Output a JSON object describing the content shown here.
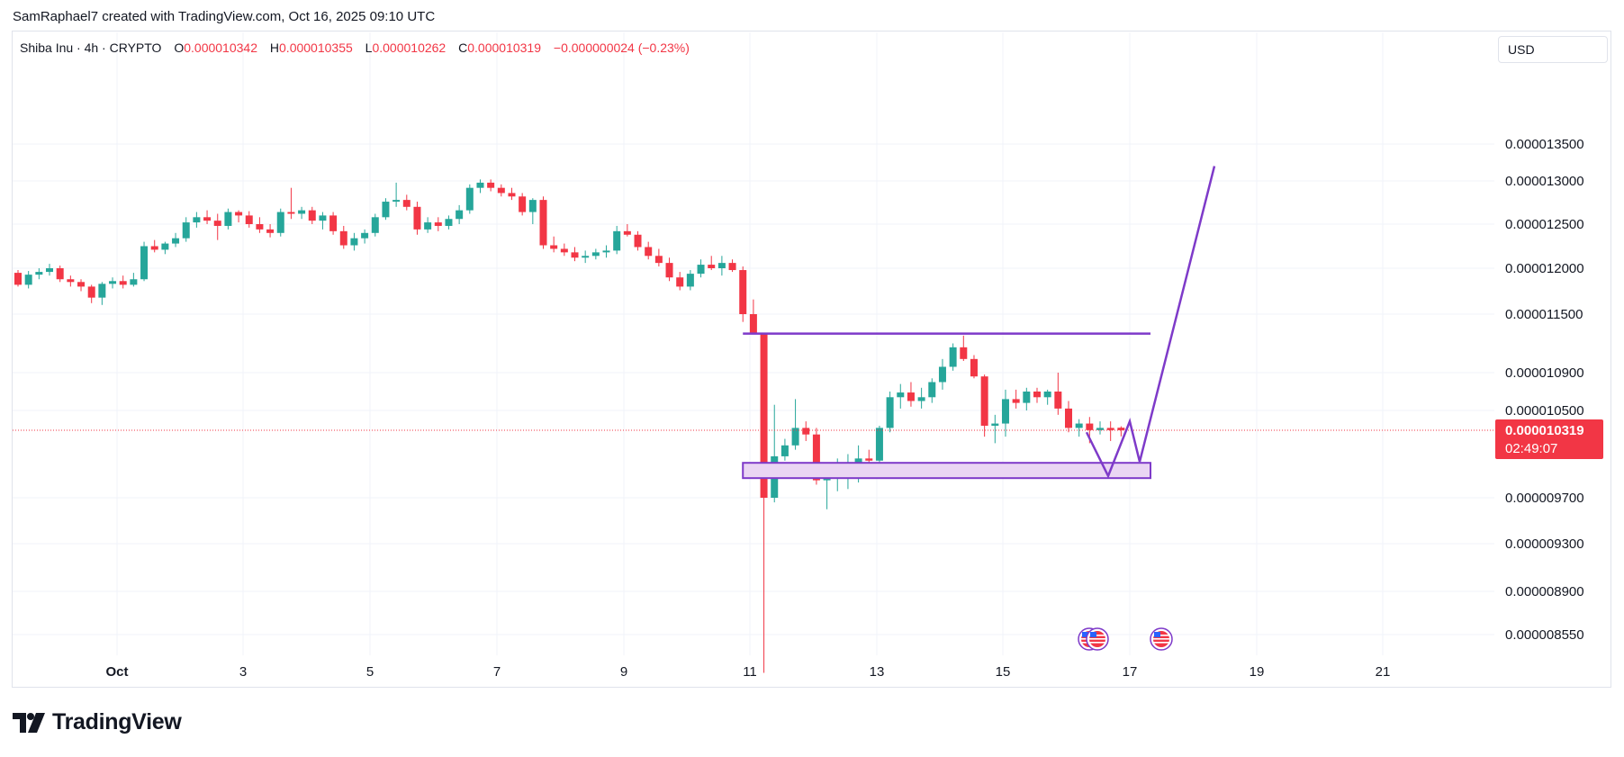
{
  "header": {
    "attribution": "SamRaphael7 created with TradingView.com, Oct 16, 2025 09:10 UTC"
  },
  "legend": {
    "symbol": "Shiba Inu · 4h · CRYPTO",
    "open_label": "O",
    "open": "0.000010342",
    "high_label": "H",
    "high": "0.000010355",
    "low_label": "L",
    "low": "0.000010262",
    "close_label": "C",
    "close": "0.000010319",
    "change": "−0.000000024 (−0.23%)"
  },
  "currency": "USD",
  "price_badge": {
    "price": "0.000010319",
    "countdown": "02:49:07"
  },
  "footer": {
    "brand": "TradingView"
  },
  "colors": {
    "up": "#26a69a",
    "down": "#f23645",
    "drawing": "#7e3ac9",
    "zone_fill": "#ead5f3",
    "grid": "#f0f3fa"
  },
  "icons": [
    "us-flag-event-icon",
    "us-flag-event-icon",
    "us-flag-event-icon"
  ],
  "chart_data": {
    "type": "candlestick",
    "timeframe": "4h",
    "x_tick_labels": [
      "Oct",
      "3",
      "5",
      "7",
      "9",
      "11",
      "13",
      "15",
      "17",
      "19",
      "21"
    ],
    "y_tick_labels": [
      "0.000013500",
      "0.000013000",
      "0.000012500",
      "0.000012000",
      "0.000011500",
      "0.000010900",
      "0.000010500",
      "0.000009700",
      "0.000009300",
      "0.000008900",
      "0.000008550"
    ],
    "y_ticks": [
      1.35e-05,
      1.3e-05,
      1.25e-05,
      1.2e-05,
      1.15e-05,
      1.09e-05,
      1.05e-05,
      9.7e-06,
      9.3e-06,
      8.9e-06,
      8.55e-06
    ],
    "last_price": 1.0319e-05,
    "candles": [
      [
        11.95,
        11.98,
        11.8,
        11.82
      ],
      [
        11.82,
        11.97,
        11.78,
        11.93
      ],
      [
        11.93,
        12.0,
        11.88,
        11.96
      ],
      [
        11.96,
        12.05,
        11.92,
        12.0
      ],
      [
        12.0,
        12.03,
        11.85,
        11.88
      ],
      [
        11.88,
        11.92,
        11.8,
        11.85
      ],
      [
        11.85,
        11.88,
        11.75,
        11.8
      ],
      [
        11.8,
        11.82,
        11.62,
        11.68
      ],
      [
        11.68,
        11.85,
        11.6,
        11.83
      ],
      [
        11.83,
        11.9,
        11.78,
        11.86
      ],
      [
        11.86,
        11.92,
        11.78,
        11.82
      ],
      [
        11.82,
        11.95,
        11.8,
        11.88
      ],
      [
        11.88,
        12.3,
        11.86,
        12.25
      ],
      [
        12.25,
        12.32,
        12.18,
        12.21
      ],
      [
        12.21,
        12.3,
        12.16,
        12.28
      ],
      [
        12.28,
        12.4,
        12.24,
        12.34
      ],
      [
        12.34,
        12.58,
        12.3,
        12.52
      ],
      [
        12.52,
        12.64,
        12.46,
        12.58
      ],
      [
        12.58,
        12.66,
        12.5,
        12.54
      ],
      [
        12.54,
        12.62,
        12.32,
        12.48
      ],
      [
        12.48,
        12.68,
        12.44,
        12.64
      ],
      [
        12.64,
        12.66,
        12.52,
        12.6
      ],
      [
        12.6,
        12.65,
        12.46,
        12.5
      ],
      [
        12.5,
        12.58,
        12.4,
        12.44
      ],
      [
        12.44,
        12.5,
        12.35,
        12.4
      ],
      [
        12.4,
        12.68,
        12.36,
        12.64
      ],
      [
        12.64,
        12.92,
        12.56,
        12.62
      ],
      [
        12.62,
        12.7,
        12.56,
        12.66
      ],
      [
        12.66,
        12.7,
        12.5,
        12.54
      ],
      [
        12.54,
        12.64,
        12.44,
        12.6
      ],
      [
        12.6,
        12.64,
        12.38,
        12.42
      ],
      [
        12.42,
        12.48,
        12.22,
        12.26
      ],
      [
        12.26,
        12.4,
        12.2,
        12.34
      ],
      [
        12.34,
        12.44,
        12.28,
        12.4
      ],
      [
        12.4,
        12.62,
        12.36,
        12.58
      ],
      [
        12.58,
        12.8,
        12.55,
        12.76
      ],
      [
        12.76,
        12.98,
        12.7,
        12.78
      ],
      [
        12.78,
        12.84,
        12.66,
        12.7
      ],
      [
        12.7,
        12.76,
        12.38,
        12.44
      ],
      [
        12.44,
        12.58,
        12.4,
        12.52
      ],
      [
        12.52,
        12.58,
        12.42,
        12.48
      ],
      [
        12.48,
        12.6,
        12.44,
        12.56
      ],
      [
        12.56,
        12.72,
        12.5,
        12.66
      ],
      [
        12.66,
        12.96,
        12.62,
        12.92
      ],
      [
        12.92,
        13.02,
        12.86,
        12.98
      ],
      [
        12.98,
        13.02,
        12.88,
        12.92
      ],
      [
        12.92,
        12.96,
        12.82,
        12.86
      ],
      [
        12.86,
        12.92,
        12.78,
        12.82
      ],
      [
        12.82,
        12.86,
        12.6,
        12.64
      ],
      [
        12.64,
        12.8,
        12.5,
        12.78
      ],
      [
        12.78,
        12.82,
        12.22,
        12.26
      ],
      [
        12.26,
        12.36,
        12.18,
        12.22
      ],
      [
        12.22,
        12.28,
        12.14,
        12.18
      ],
      [
        12.18,
        12.24,
        12.08,
        12.12
      ],
      [
        12.12,
        12.2,
        12.06,
        12.14
      ],
      [
        12.14,
        12.22,
        12.1,
        12.18
      ],
      [
        12.18,
        12.26,
        12.12,
        12.2
      ],
      [
        12.2,
        12.48,
        12.16,
        12.42
      ],
      [
        12.42,
        12.5,
        12.36,
        12.38
      ],
      [
        12.38,
        12.42,
        12.2,
        12.24
      ],
      [
        12.24,
        12.3,
        12.1,
        12.14
      ],
      [
        12.14,
        12.22,
        12.02,
        12.06
      ],
      [
        12.06,
        12.12,
        11.86,
        11.9
      ],
      [
        11.9,
        11.96,
        11.76,
        11.8
      ],
      [
        11.8,
        11.98,
        11.76,
        11.94
      ],
      [
        11.94,
        12.1,
        11.9,
        12.04
      ],
      [
        12.04,
        12.14,
        11.98,
        12.0
      ],
      [
        12.0,
        12.14,
        11.92,
        12.06
      ],
      [
        12.06,
        12.1,
        11.96,
        11.98
      ],
      [
        11.98,
        12.02,
        11.42,
        11.5
      ],
      [
        11.5,
        11.66,
        11.3,
        11.3
      ],
      [
        11.3,
        11.3,
        8.24,
        9.7
      ],
      [
        9.7,
        10.56,
        9.66,
        10.08
      ],
      [
        10.08,
        10.24,
        10.04,
        10.18
      ],
      [
        10.18,
        10.62,
        10.14,
        10.34
      ],
      [
        10.34,
        10.4,
        10.22,
        10.28
      ],
      [
        10.28,
        10.34,
        9.82,
        9.86
      ],
      [
        9.86,
        9.94,
        9.6,
        9.9
      ],
      [
        9.9,
        10.06,
        9.76,
        9.92
      ],
      [
        9.92,
        10.1,
        9.78,
        9.96
      ],
      [
        9.96,
        10.18,
        9.84,
        10.06
      ],
      [
        10.06,
        10.14,
        9.94,
        10.04
      ],
      [
        10.04,
        10.36,
        10.02,
        10.34
      ],
      [
        10.34,
        10.7,
        10.3,
        10.64
      ],
      [
        10.64,
        10.78,
        10.52,
        10.69
      ],
      [
        10.69,
        10.8,
        10.54,
        10.6
      ],
      [
        10.6,
        10.74,
        10.52,
        10.64
      ],
      [
        10.64,
        10.84,
        10.58,
        10.8
      ],
      [
        10.8,
        11.04,
        10.72,
        10.96
      ],
      [
        10.96,
        11.2,
        10.92,
        11.16
      ],
      [
        11.16,
        11.28,
        11.02,
        11.04
      ],
      [
        11.04,
        11.08,
        10.84,
        10.86
      ],
      [
        10.86,
        10.88,
        10.26,
        10.36
      ],
      [
        10.36,
        10.46,
        10.2,
        10.38
      ],
      [
        10.38,
        10.72,
        10.26,
        10.62
      ],
      [
        10.62,
        10.72,
        10.52,
        10.58
      ],
      [
        10.58,
        10.74,
        10.5,
        10.7
      ],
      [
        10.7,
        10.74,
        10.58,
        10.64
      ],
      [
        10.64,
        10.72,
        10.56,
        10.7
      ],
      [
        10.7,
        10.9,
        10.46,
        10.52
      ],
      [
        10.52,
        10.6,
        10.3,
        10.34
      ],
      [
        10.34,
        10.42,
        10.26,
        10.38
      ],
      [
        10.38,
        10.44,
        10.2,
        10.32
      ],
      [
        10.32,
        10.4,
        10.28,
        10.34
      ],
      [
        10.34,
        10.4,
        10.22,
        10.32
      ],
      [
        10.342,
        10.355,
        10.262,
        10.319
      ]
    ],
    "resistance_line": 1.13e-05,
    "support_zone": [
      9.88e-06,
      1.002e-05
    ],
    "projection_path": [
      [
        1.03e-05
      ],
      [
        9.9e-06
      ],
      [
        1.04e-05
      ],
      [
        1.003e-05
      ],
      [
        1.32e-05
      ]
    ]
  }
}
